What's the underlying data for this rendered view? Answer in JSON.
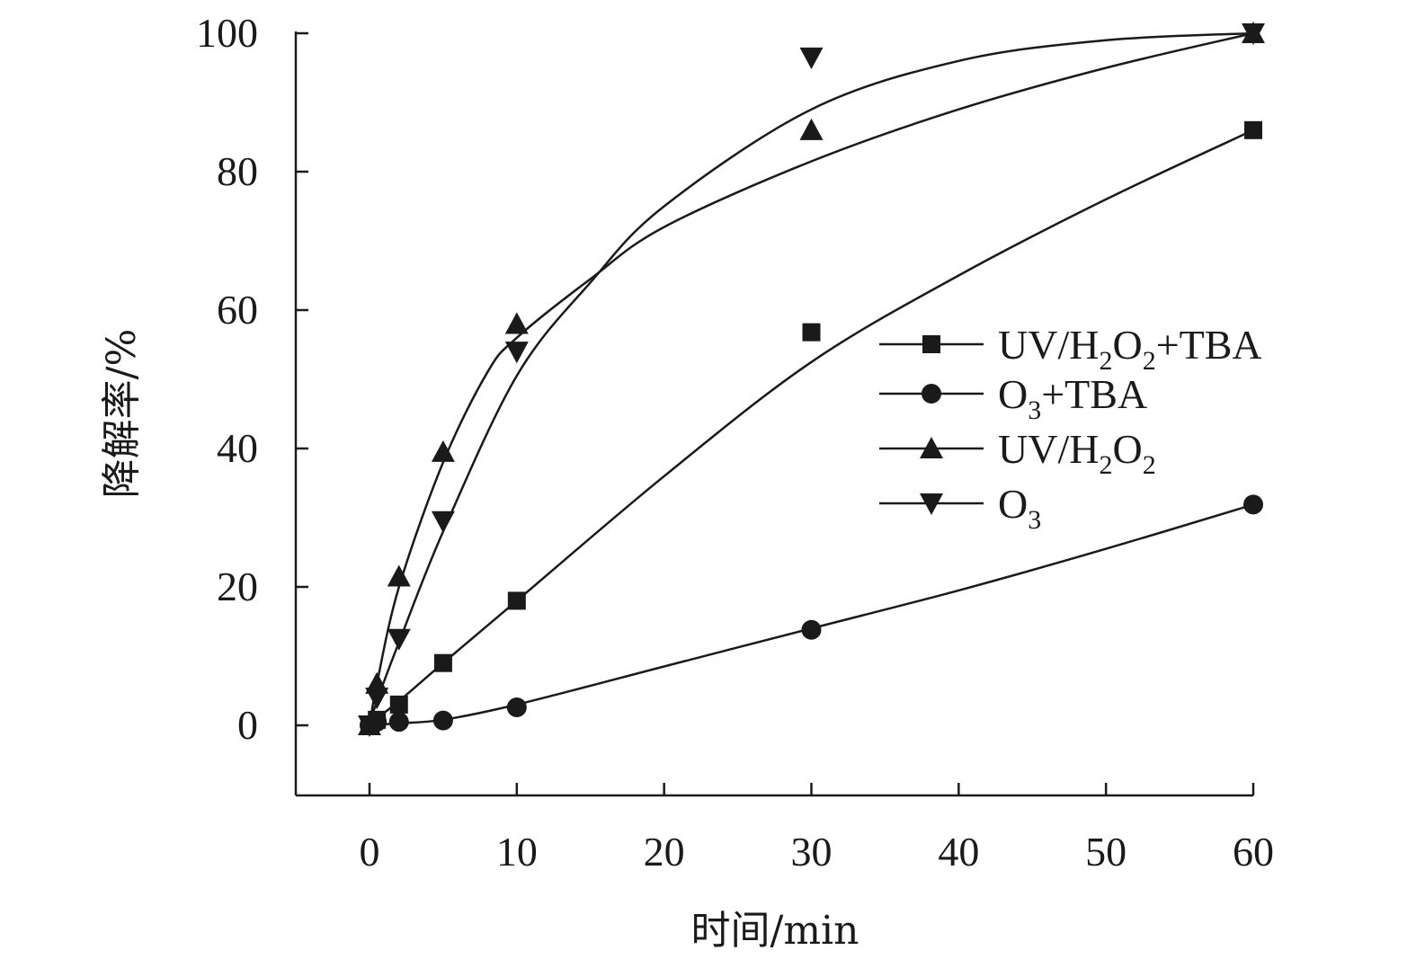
{
  "chart_data": {
    "type": "scatter",
    "title": "",
    "xlabel": "时间/min",
    "ylabel": "降解率/%",
    "xlim": [
      -5,
      60
    ],
    "ylim": [
      -10,
      100
    ],
    "xticks": [
      0,
      10,
      20,
      30,
      40,
      50,
      60
    ],
    "yticks": [
      0,
      20,
      40,
      60,
      80,
      100
    ],
    "grid": false,
    "legend_position": "right-middle",
    "series": [
      {
        "name": "UV/H2O2+TBA",
        "label_parts": [
          [
            "UV/H",
            ""
          ],
          [
            "2",
            "sub"
          ],
          [
            "O",
            ""
          ],
          [
            "2",
            "sub"
          ],
          [
            "+TBA",
            ""
          ]
        ],
        "marker": "square",
        "x": [
          0,
          0.5,
          2,
          5,
          10,
          30,
          60
        ],
        "y": [
          0,
          0.8,
          3,
          9,
          18,
          56.8,
          86
        ]
      },
      {
        "name": "O3+TBA",
        "label_parts": [
          [
            "O",
            ""
          ],
          [
            "3",
            "sub"
          ],
          [
            "+TBA",
            ""
          ]
        ],
        "marker": "circle",
        "x": [
          0,
          0.5,
          2,
          5,
          10,
          30,
          60
        ],
        "y": [
          0,
          0.5,
          0.5,
          0.7,
          2.6,
          13.8,
          31.9
        ]
      },
      {
        "name": "UV/H2O2",
        "label_parts": [
          [
            "UV/H",
            ""
          ],
          [
            "2",
            "sub"
          ],
          [
            "O",
            ""
          ],
          [
            "2",
            "sub"
          ]
        ],
        "marker": "triangle-up",
        "x": [
          0,
          0.5,
          2,
          5,
          10,
          30,
          60
        ],
        "y": [
          0,
          6,
          21.5,
          39.5,
          58,
          86,
          100
        ]
      },
      {
        "name": "O3",
        "label_parts": [
          [
            "O",
            ""
          ],
          [
            "3",
            "sub"
          ]
        ],
        "marker": "triangle-down",
        "x": [
          0,
          0.5,
          2,
          5,
          10,
          30,
          60
        ],
        "y": [
          0,
          4,
          12.5,
          29.5,
          54,
          96.5,
          100
        ]
      }
    ],
    "curves": [
      {
        "series": "UV/H2O2+TBA",
        "x": [
          0,
          0.5,
          2,
          5,
          10,
          20,
          30,
          40,
          50,
          60
        ],
        "y": [
          0,
          1,
          3.5,
          9,
          18,
          36,
          52.5,
          65,
          76,
          86
        ]
      },
      {
        "series": "O3+TBA",
        "x": [
          0,
          2,
          5,
          10,
          20,
          30,
          40,
          50,
          60
        ],
        "y": [
          0,
          0.3,
          0.8,
          3,
          8.5,
          14,
          19.5,
          25.5,
          31.9
        ]
      },
      {
        "series": "UV/H2O2",
        "x": [
          0,
          0.5,
          2,
          5,
          8,
          10,
          15,
          20,
          30,
          40,
          50,
          60
        ],
        "y": [
          0,
          6,
          20,
          38,
          51,
          56,
          64.5,
          72,
          81.5,
          89,
          95,
          100
        ]
      },
      {
        "series": "O3",
        "x": [
          0,
          0.5,
          2,
          5,
          10,
          15,
          20,
          30,
          40,
          50,
          60
        ],
        "y": [
          0,
          3.5,
          12,
          28,
          50.5,
          64,
          75,
          89,
          96,
          99,
          100
        ]
      }
    ]
  }
}
